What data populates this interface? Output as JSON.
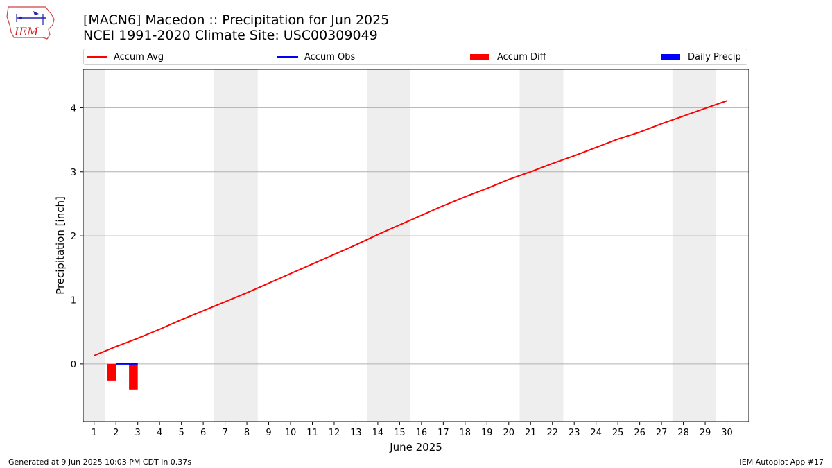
{
  "header": {
    "title_line1": "[MACN6] Macedon :: Precipitation for Jun 2025",
    "title_line2": "NCEI 1991-2020 Climate Site: USC00309049"
  },
  "logo": {
    "text": "IEM",
    "icon": "iem-iowa-logo-icon"
  },
  "legend": [
    {
      "label": "Accum Avg",
      "color": "#ff0000",
      "kind": "line"
    },
    {
      "label": "Accum Obs",
      "color": "#0000ff",
      "kind": "line"
    },
    {
      "label": "Accum Diff",
      "color": "#ff0000",
      "kind": "bar"
    },
    {
      "label": "Daily Precip",
      "color": "#0000ff",
      "kind": "bar"
    }
  ],
  "footer": {
    "left": "Generated at 9 Jun 2025 10:03 PM CDT in 0.37s",
    "right": "IEM Autoplot App #17"
  },
  "chart_data": {
    "type": "line",
    "title": "[MACN6] Macedon :: Precipitation for Jun 2025",
    "subtitle": "NCEI 1991-2020 Climate Site: USC00309049",
    "xlabel": "June 2025",
    "ylabel": "Precipitation [inch]",
    "xlim": [
      0.5,
      31.0
    ],
    "ylim": [
      -0.9,
      4.6
    ],
    "x": [
      1,
      2,
      3,
      4,
      5,
      6,
      7,
      8,
      9,
      10,
      11,
      12,
      13,
      14,
      15,
      16,
      17,
      18,
      19,
      20,
      21,
      22,
      23,
      24,
      25,
      26,
      27,
      28,
      29,
      30
    ],
    "xticks": [
      "1",
      "2",
      "3",
      "4",
      "5",
      "6",
      "7",
      "8",
      "9",
      "10",
      "11",
      "12",
      "13",
      "14",
      "15",
      "16",
      "17",
      "18",
      "19",
      "20",
      "21",
      "22",
      "23",
      "24",
      "25",
      "26",
      "27",
      "28",
      "29",
      "30"
    ],
    "yticks": [
      0,
      1,
      2,
      3,
      4
    ],
    "grid": "horizontal",
    "legend_position": "top",
    "weekend_shading": [
      [
        0.5,
        1.5
      ],
      [
        6.5,
        8.5
      ],
      [
        13.5,
        15.5
      ],
      [
        20.5,
        22.5
      ],
      [
        27.5,
        29.5
      ]
    ],
    "series": [
      {
        "name": "Accum Avg",
        "kind": "line",
        "color": "#ff0000",
        "x": [
          1,
          2,
          3,
          4,
          5,
          6,
          7,
          8,
          9,
          10,
          11,
          12,
          13,
          14,
          15,
          16,
          17,
          18,
          19,
          20,
          21,
          22,
          23,
          24,
          25,
          26,
          27,
          28,
          29,
          30
        ],
        "values": [
          0.13,
          0.27,
          0.4,
          0.54,
          0.69,
          0.83,
          0.97,
          1.11,
          1.26,
          1.41,
          1.56,
          1.71,
          1.86,
          2.02,
          2.17,
          2.32,
          2.47,
          2.61,
          2.74,
          2.88,
          3.0,
          3.13,
          3.25,
          3.38,
          3.51,
          3.62,
          3.75,
          3.87,
          3.99,
          4.11
        ]
      },
      {
        "name": "Accum Obs",
        "kind": "line",
        "color": "#0000ff",
        "x": [
          2,
          3
        ],
        "values": [
          0.0,
          0.0
        ]
      },
      {
        "name": "Accum Diff",
        "kind": "bar",
        "color": "#ff0000",
        "x": [
          1.8,
          2.8
        ],
        "values": [
          -0.26,
          -0.4
        ]
      },
      {
        "name": "Daily Precip",
        "kind": "bar",
        "color": "#0000ff",
        "x": [],
        "values": []
      }
    ]
  }
}
